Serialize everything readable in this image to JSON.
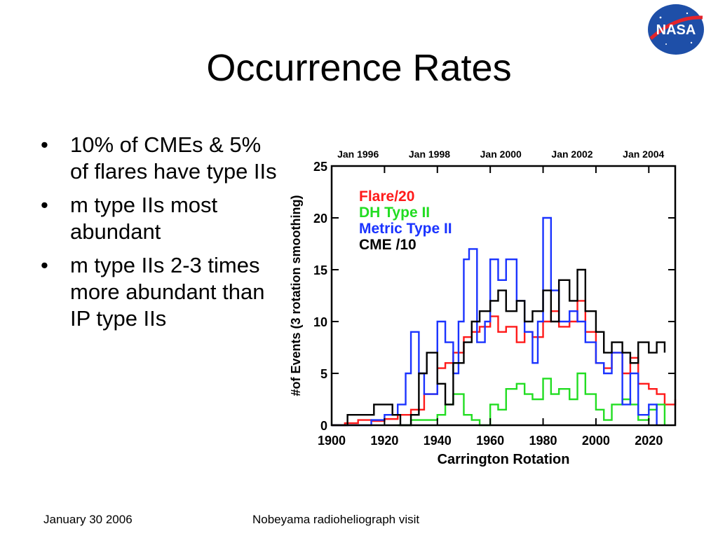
{
  "slide": {
    "title": "Occurrence Rates",
    "bullets": [
      "10% of CMEs & 5% of flares have type IIs",
      "m type IIs most abundant",
      "m type IIs 2-3 times more abundant than IP type IIs"
    ],
    "footer_date": "January 30 2006",
    "footer_event": "Nobeyama radioheliograph visit",
    "logo_text": "NASA"
  },
  "chart_data": {
    "type": "line",
    "xlabel": "Carrington Rotation",
    "ylabel": "#of Events (3 rotation smoothing)",
    "xlim": [
      1900,
      2030
    ],
    "ylim": [
      0,
      25
    ],
    "x_ticks": [
      1900,
      1920,
      1940,
      1960,
      1980,
      2000,
      2020
    ],
    "y_ticks": [
      0,
      5,
      10,
      15,
      20,
      25
    ],
    "top_axis_labels": [
      "Jan 1996",
      "Jan 1998",
      "Jan 2000",
      "Jan 2002",
      "Jan 2004"
    ],
    "top_axis_positions": [
      1910,
      1937,
      1964,
      1991,
      2018
    ],
    "grid": false,
    "legend_position": "top-left",
    "series": [
      {
        "name": "Flare/20",
        "color": "#ff1a1a",
        "x": [
          1900,
          1905,
          1910,
          1915,
          1920,
          1925,
          1930,
          1935,
          1940,
          1943,
          1946,
          1950,
          1953,
          1956,
          1960,
          1963,
          1966,
          1970,
          1973,
          1976,
          1980,
          1983,
          1986,
          1990,
          1993,
          1996,
          2000,
          2003,
          2006,
          2010,
          2013,
          2016,
          2020,
          2023,
          2026,
          2030
        ],
        "y": [
          0,
          0.2,
          0.5,
          0.4,
          0.6,
          1.0,
          1.5,
          3.0,
          5.5,
          6.0,
          7.0,
          8.5,
          9.0,
          9.5,
          10.5,
          9.0,
          9.5,
          8.0,
          9.0,
          8.5,
          10.0,
          11.0,
          9.5,
          10.0,
          12.0,
          9.0,
          6.0,
          5.5,
          7.0,
          5.0,
          6.5,
          4.0,
          3.5,
          3.0,
          2.0,
          2.5
        ]
      },
      {
        "name": "DH Type II",
        "color": "#22dd22",
        "x": [
          1925,
          1930,
          1935,
          1940,
          1943,
          1946,
          1950,
          1953,
          1956,
          1960,
          1963,
          1966,
          1970,
          1973,
          1976,
          1980,
          1983,
          1986,
          1990,
          1993,
          1996,
          2000,
          2003,
          2006,
          2010,
          2013,
          2016,
          2020,
          2023,
          2026
        ],
        "y": [
          0,
          0.5,
          0.5,
          1.0,
          2.0,
          3.0,
          1.0,
          0.5,
          0.0,
          2.0,
          1.5,
          3.5,
          4.0,
          3.0,
          2.5,
          4.5,
          3.0,
          3.5,
          2.5,
          5.0,
          3.0,
          1.5,
          0.5,
          2.0,
          2.5,
          2.0,
          0.5,
          1.5,
          2.0,
          0.0
        ]
      },
      {
        "name": "Metric Type II",
        "color": "#1a33ff",
        "x": [
          1900,
          1910,
          1915,
          1920,
          1925,
          1928,
          1930,
          1933,
          1935,
          1940,
          1943,
          1946,
          1948,
          1950,
          1952,
          1955,
          1958,
          1960,
          1963,
          1966,
          1970,
          1973,
          1976,
          1978,
          1980,
          1983,
          1986,
          1990,
          1993,
          1996,
          2000,
          2003,
          2006,
          2010,
          2013,
          2016,
          2020,
          2023
        ],
        "y": [
          0,
          0,
          0.5,
          1.0,
          2.0,
          5.0,
          9.0,
          5.0,
          3.0,
          10.0,
          8.0,
          5.0,
          10.0,
          16.0,
          17.0,
          8.0,
          10.0,
          16.0,
          14.0,
          16.0,
          12.0,
          9.0,
          6.0,
          10.0,
          20.0,
          13.0,
          10.0,
          11.0,
          10.0,
          8.0,
          6.0,
          5.0,
          7.0,
          2.0,
          5.0,
          1.0,
          2.0,
          0.0
        ]
      },
      {
        "name": "CME /10",
        "color": "#000000",
        "x": [
          1900,
          1903,
          1906,
          1910,
          1913,
          1916,
          1920,
          1923,
          1926,
          1930,
          1933,
          1936,
          1940,
          1943,
          1946,
          1950,
          1953,
          1956,
          1960,
          1963,
          1966,
          1970,
          1973,
          1976,
          1980,
          1983,
          1986,
          1990,
          1993,
          1996,
          2000,
          2003,
          2006,
          2010,
          2013,
          2016,
          2020,
          2023,
          2026
        ],
        "y": [
          0,
          0,
          1.0,
          1.0,
          1.0,
          2.0,
          2.0,
          1.0,
          0,
          1.0,
          5.0,
          7.0,
          4.0,
          2.0,
          6.0,
          8.0,
          10.0,
          11.0,
          12.0,
          13.0,
          11.0,
          12.0,
          10.0,
          11.0,
          13.0,
          10.0,
          14.0,
          12.0,
          15.0,
          11.0,
          9.0,
          7.0,
          8.0,
          7.0,
          6.0,
          8.0,
          7.0,
          8.0,
          7.0
        ]
      }
    ]
  }
}
